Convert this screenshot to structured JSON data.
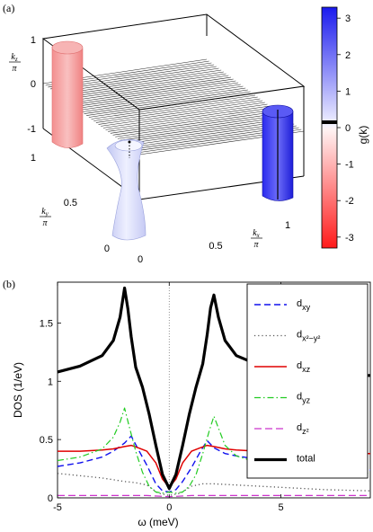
{
  "panel_a": {
    "label": "(a)",
    "z_axis_label": "k_z/π",
    "y_axis_label": "k_y/π",
    "x_axis_label": "k_x/π",
    "z_ticks": [
      "1",
      "0",
      "-1"
    ],
    "y_ticks": [
      "1",
      "0.5",
      "0"
    ],
    "x_ticks": [
      "0",
      "0.5",
      "1"
    ],
    "colorbar": {
      "label": "g(k)",
      "ticks": [
        "3",
        "2",
        "1",
        "0",
        "-1",
        "-2",
        "-3"
      ],
      "range": [
        -3.3,
        3.3
      ],
      "positive_color": "#2020ee",
      "negative_color": "#ff2020"
    }
  },
  "chart_data": [
    {
      "type": "surface3d",
      "title": "",
      "xlabel": "k_x/π",
      "ylabel": "k_y/π",
      "zlabel": "k_z/π",
      "xlim": [
        0,
        1
      ],
      "ylim": [
        0,
        1
      ],
      "zlim": [
        -1,
        1
      ],
      "features": [
        {
          "name": "cylinder at k=(0,1)",
          "sign": "negative",
          "color": "#f4a0a0"
        },
        {
          "name": "hourglass at k=(0,0)",
          "sign": "positive",
          "color": "#d8dcf8"
        },
        {
          "name": "cylinder pair at k=(1,1)",
          "sign": "positive",
          "color": "#3a3af0"
        }
      ]
    },
    {
      "type": "line",
      "title": "",
      "panel_label": "(b)",
      "xlabel": "ω (meV)",
      "ylabel": "DOS (1/eV)",
      "xlim": [
        -5,
        9
      ],
      "ylim": [
        0,
        1.85
      ],
      "xticks": [
        "-5",
        "0",
        "5"
      ],
      "yticks": [
        "0",
        "0.5",
        "1",
        "1.5"
      ],
      "legend_position": "right",
      "series": [
        {
          "name": "d_xy",
          "label_main": "d",
          "label_sub": "xy",
          "color": "#1010ee",
          "dash": "7,4",
          "width": 1.4,
          "x": [
            -5,
            -4,
            -3,
            -2.5,
            -2,
            -1.7,
            -1.4,
            -1,
            -0.6,
            -0.3,
            0,
            0.3,
            0.6,
            1,
            1.4,
            1.7,
            2,
            2.5,
            3,
            4,
            5,
            6,
            7,
            8,
            9
          ],
          "y": [
            0.27,
            0.3,
            0.35,
            0.4,
            0.47,
            0.53,
            0.42,
            0.28,
            0.12,
            0.06,
            0.05,
            0.07,
            0.14,
            0.26,
            0.4,
            0.49,
            0.43,
            0.38,
            0.36,
            0.33,
            0.3,
            0.28,
            0.26,
            0.25,
            0.24
          ]
        },
        {
          "name": "d_x2-y2",
          "label_main": "d",
          "label_sub": "x²−y²",
          "color": "#555555",
          "dash": "1.2,3",
          "width": 1.3,
          "x": [
            -5,
            -3,
            -2,
            -1.5,
            -1,
            -0.5,
            0,
            0.5,
            1,
            1.5,
            2,
            3,
            5,
            7,
            9
          ],
          "y": [
            0.21,
            0.17,
            0.14,
            0.13,
            0.11,
            0.04,
            0.02,
            0.04,
            0.1,
            0.12,
            0.12,
            0.11,
            0.09,
            0.07,
            0.06
          ]
        },
        {
          "name": "d_xz",
          "label_main": "d",
          "label_sub": "xz",
          "color": "#e00000",
          "dash": "",
          "width": 1.5,
          "x": [
            -5,
            -4,
            -3,
            -2.5,
            -2,
            -1.7,
            -1.4,
            -1,
            -0.6,
            -0.3,
            0,
            0.3,
            0.6,
            1,
            1.4,
            1.7,
            2,
            2.5,
            3,
            4,
            5,
            6,
            7,
            8,
            9
          ],
          "y": [
            0.4,
            0.4,
            0.41,
            0.42,
            0.44,
            0.45,
            0.43,
            0.4,
            0.3,
            0.16,
            0.09,
            0.16,
            0.3,
            0.4,
            0.43,
            0.45,
            0.44,
            0.42,
            0.41,
            0.4,
            0.39,
            0.39,
            0.39,
            0.38,
            0.38
          ]
        },
        {
          "name": "d_yz",
          "label_main": "d",
          "label_sub": "yz",
          "color": "#22cc22",
          "dash": "7,3,1.5,3",
          "width": 1.2,
          "x": [
            -5,
            -4,
            -3,
            -2.5,
            -2.2,
            -2,
            -1.8,
            -1.5,
            -1.2,
            -0.9,
            -0.6,
            -0.3,
            0,
            0.3,
            0.6,
            0.9,
            1.2,
            1.5,
            1.8,
            2,
            2.2,
            2.5,
            3,
            4,
            5,
            6,
            7,
            8,
            9
          ],
          "y": [
            0.32,
            0.35,
            0.42,
            0.52,
            0.65,
            0.77,
            0.62,
            0.4,
            0.22,
            0.1,
            0.05,
            0.04,
            0.05,
            0.04,
            0.05,
            0.1,
            0.2,
            0.38,
            0.58,
            0.7,
            0.6,
            0.45,
            0.36,
            0.3,
            0.26,
            0.24,
            0.23,
            0.22,
            0.21
          ]
        },
        {
          "name": "d_z2",
          "label_main": "d",
          "label_sub": "z²",
          "color": "#cc33cc",
          "dash": "8,4",
          "width": 1.2,
          "x": [
            -5,
            -3,
            -1,
            0,
            1,
            3,
            5,
            7,
            9
          ],
          "y": [
            0.02,
            0.02,
            0.02,
            0.01,
            0.02,
            0.02,
            0.02,
            0.02,
            0.02
          ]
        },
        {
          "name": "total",
          "label_main": "total",
          "label_sub": "",
          "color": "#000000",
          "dash": "",
          "width": 3.2,
          "x": [
            -5,
            -4,
            -3,
            -2.5,
            -2.2,
            -2,
            -1.85,
            -1.7,
            -1.5,
            -1.2,
            -0.9,
            -0.6,
            -0.3,
            0,
            0.3,
            0.6,
            0.9,
            1.2,
            1.5,
            1.7,
            1.85,
            2,
            2.2,
            2.5,
            3,
            4,
            5,
            6,
            7,
            8,
            9
          ],
          "y": [
            1.08,
            1.13,
            1.22,
            1.35,
            1.55,
            1.8,
            1.62,
            1.38,
            1.12,
            0.95,
            0.72,
            0.45,
            0.2,
            0.08,
            0.2,
            0.45,
            0.72,
            0.95,
            1.15,
            1.4,
            1.63,
            1.74,
            1.55,
            1.35,
            1.22,
            1.14,
            1.1,
            1.08,
            1.06,
            1.05,
            1.05
          ]
        }
      ]
    }
  ]
}
